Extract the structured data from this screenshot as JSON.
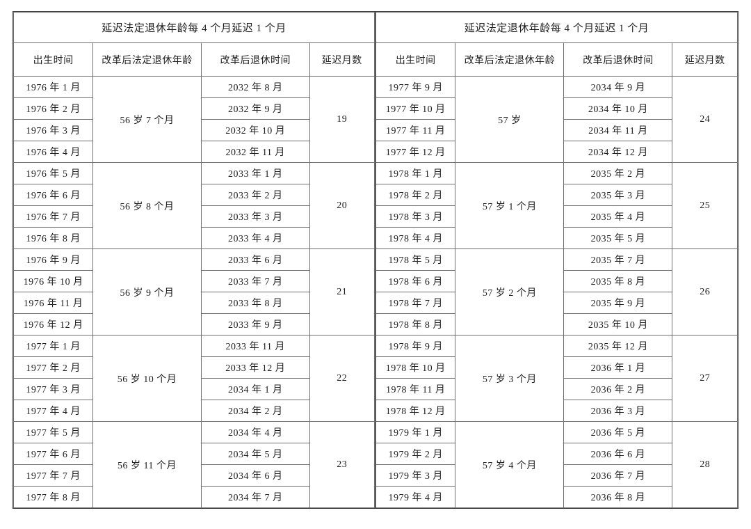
{
  "title": "延迟法定退休年龄每 4 个月延迟 1 个月",
  "columns": {
    "birth": "出生时间",
    "age": "改革后法定退休年龄",
    "retire": "改革后退休时间",
    "delay": "延迟月数"
  },
  "border_color": "#707070",
  "outer_border_color": "#404040",
  "text_color": "#202020",
  "background_color": "#ffffff",
  "font_family": "SimSun",
  "font_size_cell": 14,
  "font_size_title": 15,
  "left": {
    "groups": [
      {
        "age": "56 岁 7 个月",
        "delay": "19",
        "rows": [
          {
            "birth": "1976 年 1 月",
            "retire": "2032 年 8 月"
          },
          {
            "birth": "1976 年 2 月",
            "retire": "2032 年 9 月"
          },
          {
            "birth": "1976 年 3 月",
            "retire": "2032 年 10 月"
          },
          {
            "birth": "1976 年 4 月",
            "retire": "2032 年 11 月"
          }
        ]
      },
      {
        "age": "56 岁 8 个月",
        "delay": "20",
        "rows": [
          {
            "birth": "1976 年 5 月",
            "retire": "2033 年 1 月"
          },
          {
            "birth": "1976 年 6 月",
            "retire": "2033 年 2 月"
          },
          {
            "birth": "1976 年 7 月",
            "retire": "2033 年 3 月"
          },
          {
            "birth": "1976 年 8 月",
            "retire": "2033 年 4 月"
          }
        ]
      },
      {
        "age": "56 岁 9 个月",
        "delay": "21",
        "rows": [
          {
            "birth": "1976 年 9 月",
            "retire": "2033 年 6 月"
          },
          {
            "birth": "1976 年 10 月",
            "retire": "2033 年 7 月"
          },
          {
            "birth": "1976 年 11 月",
            "retire": "2033 年 8 月"
          },
          {
            "birth": "1976 年 12 月",
            "retire": "2033 年 9 月"
          }
        ]
      },
      {
        "age": "56 岁 10 个月",
        "delay": "22",
        "rows": [
          {
            "birth": "1977 年 1 月",
            "retire": "2033 年 11 月"
          },
          {
            "birth": "1977 年 2 月",
            "retire": "2033 年 12 月"
          },
          {
            "birth": "1977 年 3 月",
            "retire": "2034 年 1 月"
          },
          {
            "birth": "1977 年 4 月",
            "retire": "2034 年 2 月"
          }
        ]
      },
      {
        "age": "56 岁 11 个月",
        "delay": "23",
        "rows": [
          {
            "birth": "1977 年 5 月",
            "retire": "2034 年 4 月"
          },
          {
            "birth": "1977 年 6 月",
            "retire": "2034 年 5 月"
          },
          {
            "birth": "1977 年 7 月",
            "retire": "2034 年 6 月"
          },
          {
            "birth": "1977 年 8 月",
            "retire": "2034 年 7 月"
          }
        ]
      }
    ]
  },
  "right": {
    "groups": [
      {
        "age": "57 岁",
        "delay": "24",
        "rows": [
          {
            "birth": "1977 年 9 月",
            "retire": "2034 年 9 月"
          },
          {
            "birth": "1977 年 10 月",
            "retire": "2034 年 10 月"
          },
          {
            "birth": "1977 年 11 月",
            "retire": "2034 年 11 月"
          },
          {
            "birth": "1977 年 12 月",
            "retire": "2034 年 12 月"
          }
        ]
      },
      {
        "age": "57 岁 1 个月",
        "delay": "25",
        "rows": [
          {
            "birth": "1978 年 1 月",
            "retire": "2035 年 2 月"
          },
          {
            "birth": "1978 年 2 月",
            "retire": "2035 年 3 月"
          },
          {
            "birth": "1978 年 3 月",
            "retire": "2035 年 4 月"
          },
          {
            "birth": "1978 年 4 月",
            "retire": "2035 年 5 月"
          }
        ]
      },
      {
        "age": "57 岁 2 个月",
        "delay": "26",
        "rows": [
          {
            "birth": "1978 年 5 月",
            "retire": "2035 年 7 月"
          },
          {
            "birth": "1978 年 6 月",
            "retire": "2035 年 8 月"
          },
          {
            "birth": "1978 年 7 月",
            "retire": "2035 年 9 月"
          },
          {
            "birth": "1978 年 8 月",
            "retire": "2035 年 10 月"
          }
        ]
      },
      {
        "age": "57 岁 3 个月",
        "delay": "27",
        "rows": [
          {
            "birth": "1978 年 9 月",
            "retire": "2035 年 12 月"
          },
          {
            "birth": "1978 年 10 月",
            "retire": "2036 年 1 月"
          },
          {
            "birth": "1978 年 11 月",
            "retire": "2036 年 2 月"
          },
          {
            "birth": "1978 年 12 月",
            "retire": "2036 年 3 月"
          }
        ]
      },
      {
        "age": "57 岁 4 个月",
        "delay": "28",
        "rows": [
          {
            "birth": "1979 年 1 月",
            "retire": "2036 年 5 月"
          },
          {
            "birth": "1979 年 2 月",
            "retire": "2036 年 6 月"
          },
          {
            "birth": "1979 年 3 月",
            "retire": "2036 年 7 月"
          },
          {
            "birth": "1979 年 4 月",
            "retire": "2036 年 8 月"
          }
        ]
      }
    ]
  }
}
